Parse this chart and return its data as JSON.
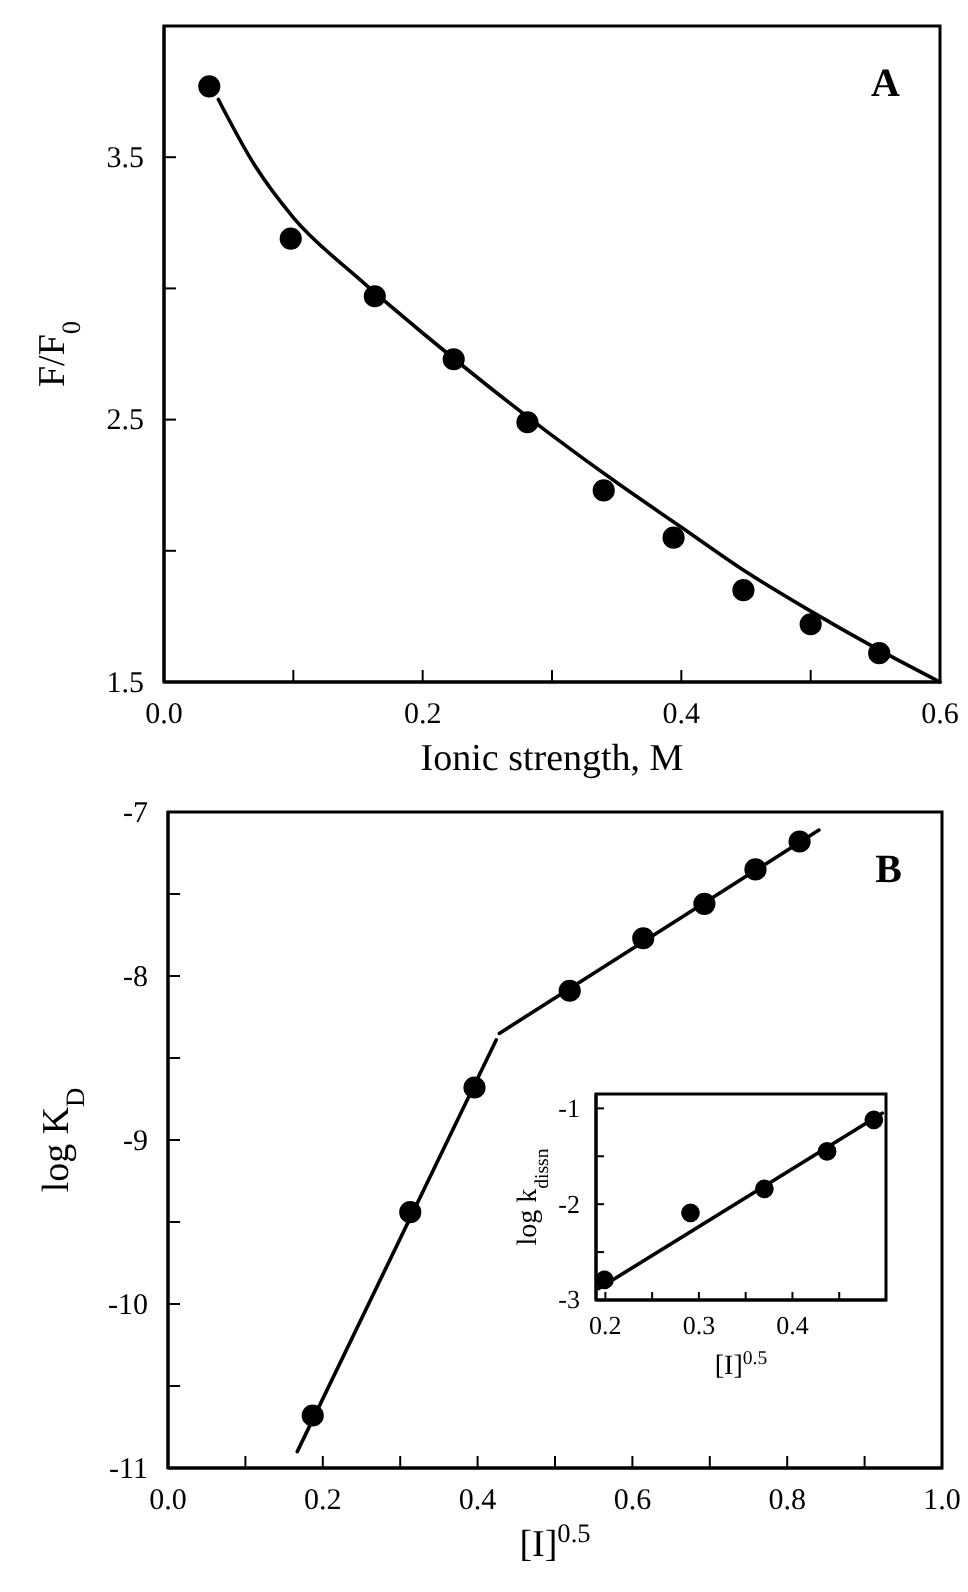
{
  "chart_data": [
    {
      "type": "scatter",
      "xlabel": "Ionic strength, M",
      "ylabel": "F/F$_{0}$",
      "annotations": [
        "A"
      ],
      "xlim": [
        0,
        0.6
      ],
      "ylim": [
        1.5,
        4.0
      ],
      "xticks": [
        {
          "value": 0,
          "label": "0.0"
        },
        {
          "value": 0.1,
          "label": null
        },
        0.2,
        {
          "value": 0.3,
          "label": null
        },
        0.4,
        {
          "value": 0.5,
          "label": null
        },
        0.6
      ],
      "yticks": [
        1.5,
        {
          "value": 2.0,
          "label": null
        },
        2.5,
        {
          "value": 3.0,
          "label": null
        },
        3.5
      ],
      "series": [
        {
          "marker": "circle",
          "color": "#000000",
          "x": [
            0.035,
            0.098,
            0.163,
            0.224,
            0.281,
            0.34,
            0.394,
            0.448,
            0.5,
            0.553
          ],
          "values": [
            3.77,
            3.19,
            2.97,
            2.73,
            2.49,
            2.23,
            2.05,
            1.85,
            1.72,
            1.61
          ]
        },
        {
          "type": "line",
          "color": "#000000",
          "x": [
            0.042,
            0.07,
            0.1,
            0.15,
            0.2,
            0.25,
            0.3,
            0.35,
            0.4,
            0.45,
            0.5,
            0.55,
            0.6
          ],
          "values": [
            3.72,
            3.47,
            3.27,
            3.04,
            2.83,
            2.63,
            2.44,
            2.26,
            2.09,
            1.92,
            1.77,
            1.63,
            1.5
          ]
        }
      ]
    },
    {
      "type": "scatter",
      "xlabel": "[I]$^{0.5}$",
      "ylabel": "log K$_{D}$",
      "annotations": [
        "B"
      ],
      "xlim": [
        0,
        1.0
      ],
      "ylim": [
        -11,
        -7
      ],
      "xticks": [
        {
          "value": 0,
          "label": "0.0"
        },
        {
          "value": 0.1,
          "label": null
        },
        0.2,
        {
          "value": 0.3,
          "label": null
        },
        0.4,
        {
          "value": 0.5,
          "label": null
        },
        0.6,
        {
          "value": 0.7,
          "label": null
        },
        0.8,
        {
          "value": 0.9,
          "label": null
        },
        {
          "value": 1.0,
          "label": "1.0"
        }
      ],
      "yticks": [
        -11,
        {
          "value": -10.5,
          "label": null
        },
        -10,
        {
          "value": -9.5,
          "label": null
        },
        -9,
        {
          "value": -8.5,
          "label": null
        },
        -8,
        {
          "value": -7.5,
          "label": null
        },
        -7
      ],
      "series": [
        {
          "marker": "circle",
          "color": "#000000",
          "x": [
            0.187,
            0.313,
            0.396,
            0.519,
            0.614,
            0.693,
            0.759,
            0.816
          ],
          "values": [
            -10.68,
            -9.44,
            -8.68,
            -8.09,
            -7.77,
            -7.56,
            -7.35,
            -7.18
          ]
        },
        {
          "type": "line",
          "color": "#000000",
          "x": [
            0.167,
            0.424
          ],
          "values": [
            -10.9,
            -8.39
          ]
        },
        {
          "type": "line",
          "color": "#000000",
          "x": [
            0.428,
            0.841
          ],
          "values": [
            -8.35,
            -7.11
          ]
        }
      ]
    },
    {
      "type": "scatter",
      "xlabel": "[I]$^{0.5}$",
      "ylabel": "log k$_{dissn}$",
      "xlim": [
        0.19,
        0.5
      ],
      "ylim": [
        -3,
        -0.85
      ],
      "xticks": [
        0.2,
        {
          "value": 0.25,
          "label": null
        },
        0.3,
        {
          "value": 0.35,
          "label": null
        },
        0.4,
        {
          "value": 0.45,
          "label": null
        }
      ],
      "yticks": [
        -3,
        {
          "value": -2.5,
          "label": null
        },
        -2,
        {
          "value": -1.5,
          "label": null
        },
        -1
      ],
      "series": [
        {
          "marker": "circle",
          "color": "#000000",
          "x": [
            0.199,
            0.291,
            0.37,
            0.437,
            0.487
          ],
          "values": [
            -2.79,
            -2.09,
            -1.84,
            -1.45,
            -1.12
          ]
        },
        {
          "type": "line",
          "color": "#000000",
          "x": [
            0.193,
            0.496
          ],
          "values": [
            -2.88,
            -1.05
          ]
        }
      ]
    }
  ]
}
